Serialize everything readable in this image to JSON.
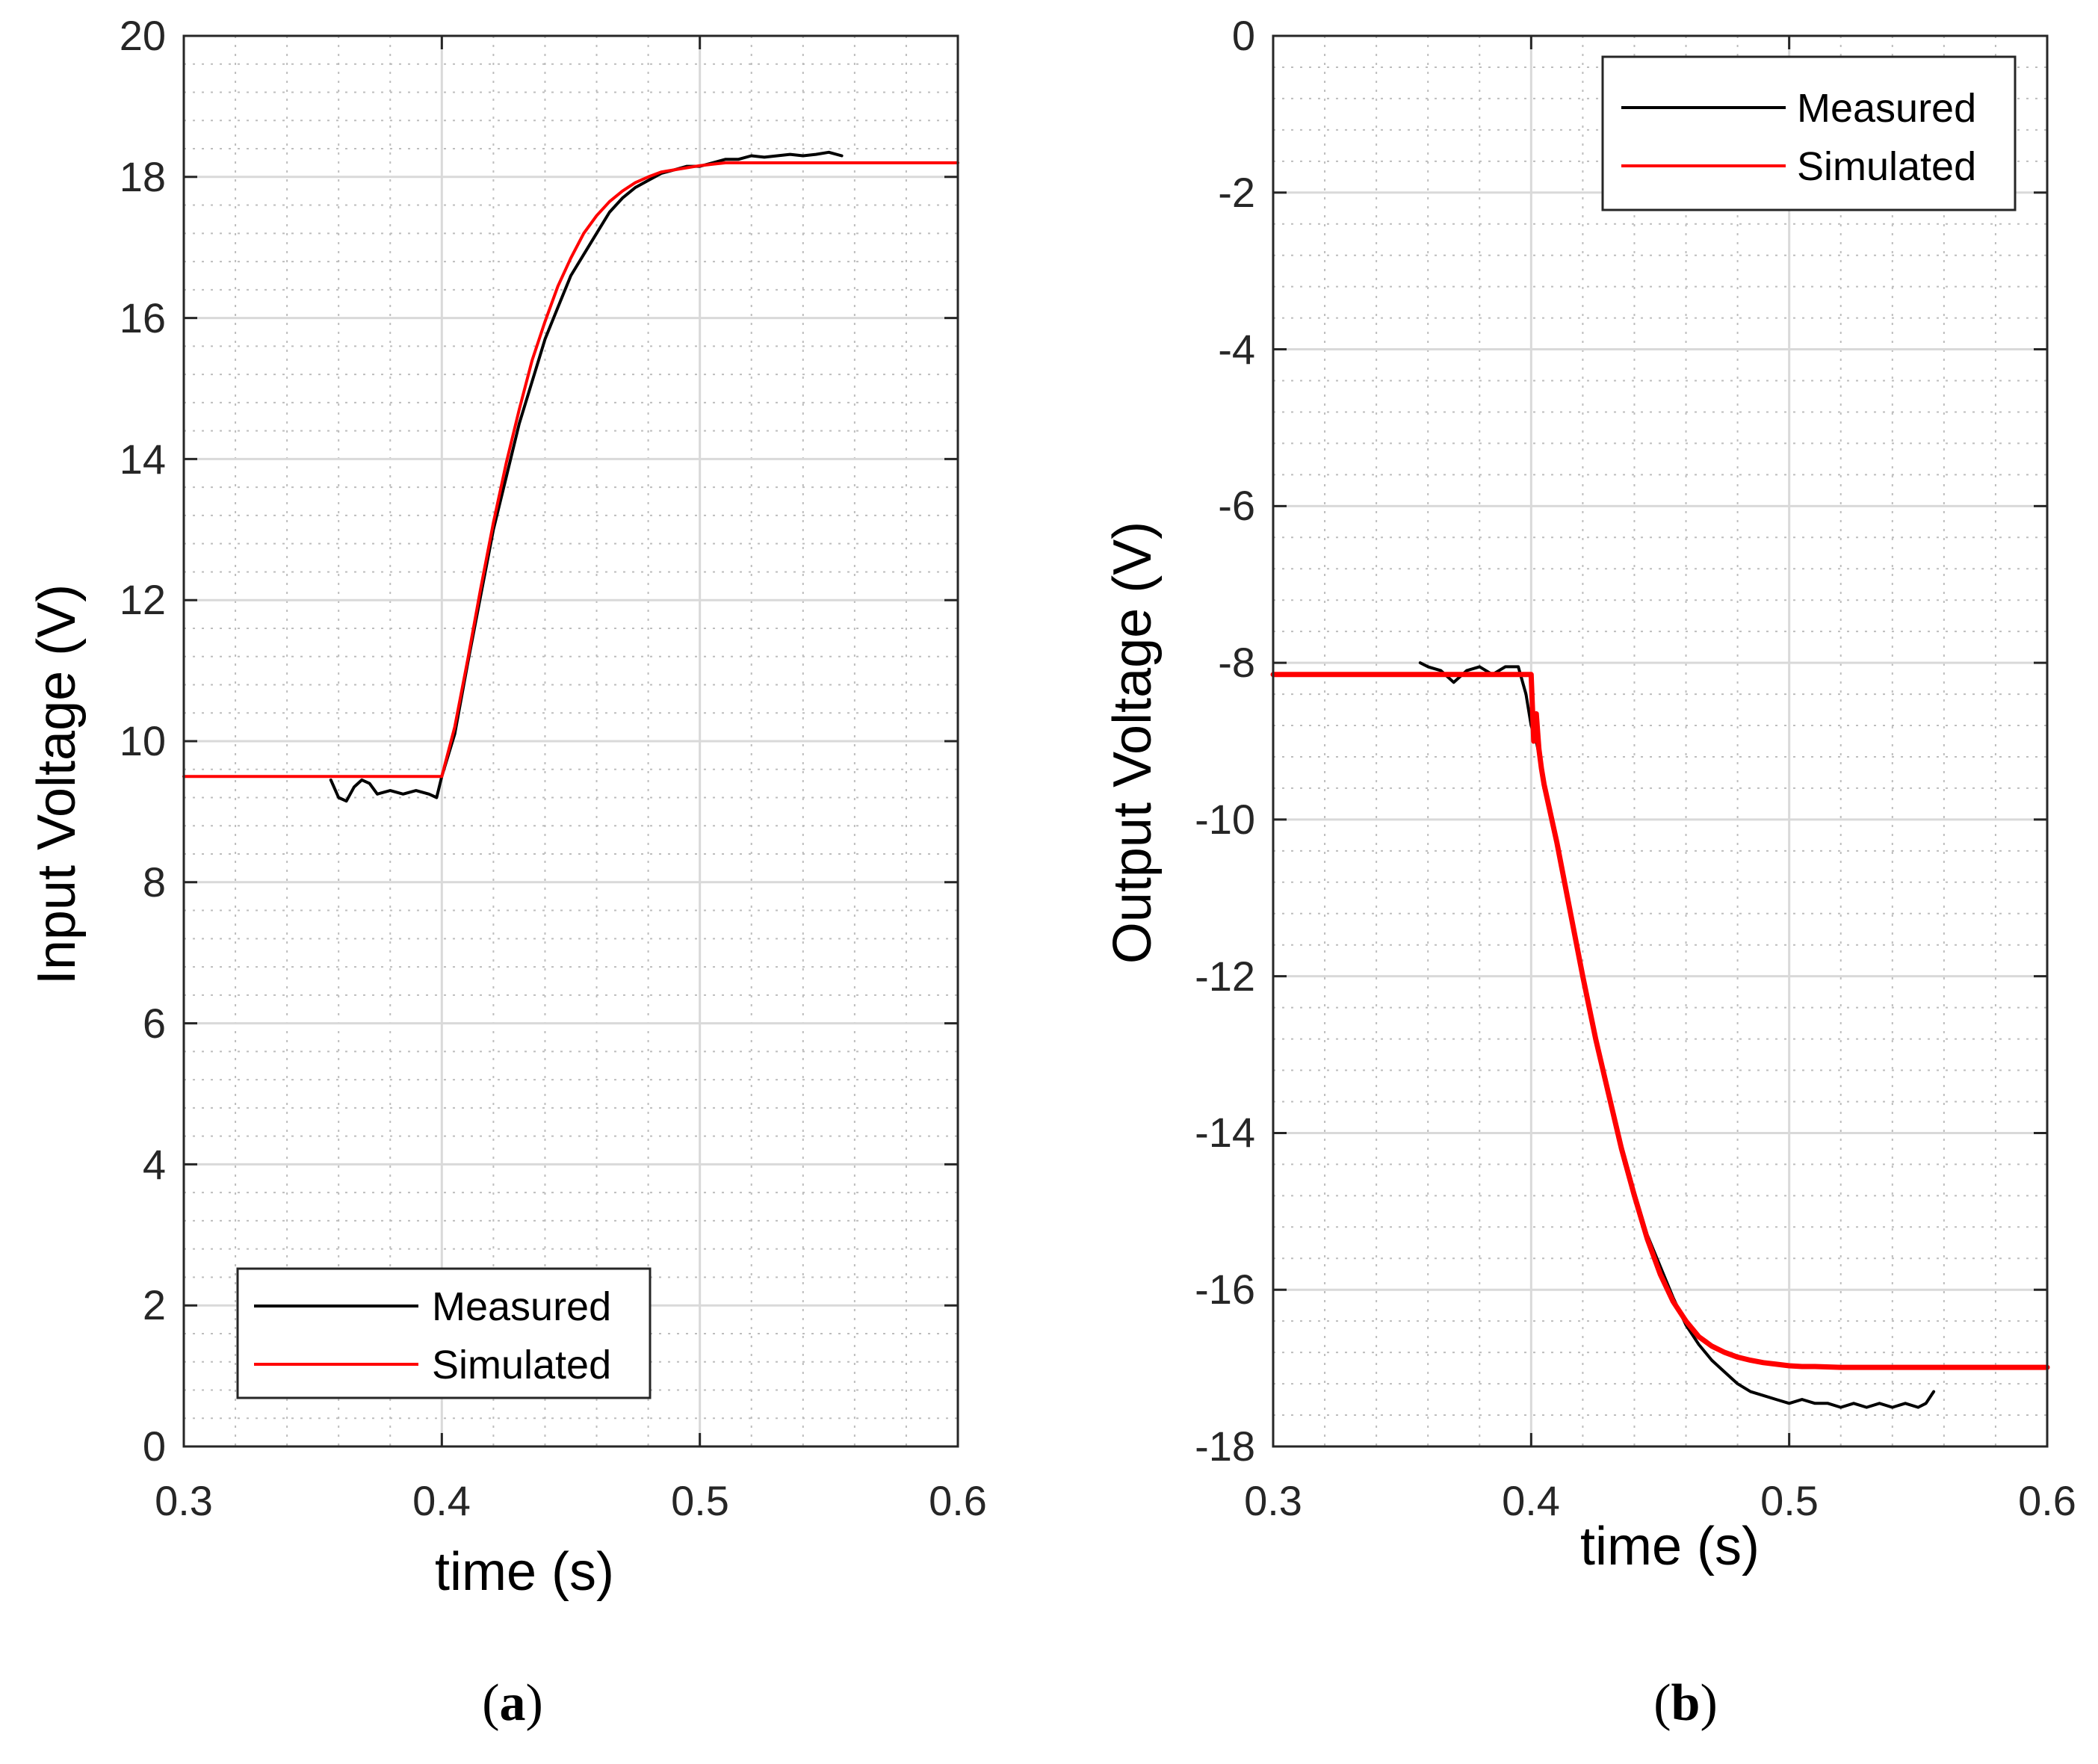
{
  "chart_data": [
    {
      "type": "line",
      "panel_label": "a",
      "xlabel": "time (s)",
      "ylabel": "Input Voltage (V)",
      "xlim": [
        0.3,
        0.6
      ],
      "ylim": [
        0,
        20
      ],
      "xticks": [
        0.3,
        0.4,
        0.5,
        0.6
      ],
      "xtick_labels": [
        "0.3",
        "0.4",
        "0.5",
        "0.6"
      ],
      "yticks": [
        0,
        2,
        4,
        6,
        8,
        10,
        12,
        14,
        16,
        18,
        20
      ],
      "ytick_labels": [
        "0",
        "2",
        "4",
        "6",
        "8",
        "10",
        "12",
        "14",
        "16",
        "18",
        "20"
      ],
      "grid": "major solid, minor dotted",
      "legend_position": "bottom-left",
      "series": [
        {
          "name": "Measured",
          "color": "#000000",
          "x": [
            0.357,
            0.36,
            0.363,
            0.366,
            0.369,
            0.372,
            0.375,
            0.38,
            0.385,
            0.39,
            0.395,
            0.398,
            0.4,
            0.405,
            0.41,
            0.415,
            0.42,
            0.425,
            0.43,
            0.435,
            0.44,
            0.445,
            0.45,
            0.455,
            0.46,
            0.465,
            0.47,
            0.475,
            0.48,
            0.485,
            0.49,
            0.495,
            0.5,
            0.505,
            0.51,
            0.515,
            0.52,
            0.525,
            0.53,
            0.535,
            0.54,
            0.545,
            0.55,
            0.555
          ],
          "y": [
            9.45,
            9.2,
            9.15,
            9.35,
            9.45,
            9.4,
            9.25,
            9.3,
            9.25,
            9.3,
            9.25,
            9.2,
            9.5,
            10.1,
            11.1,
            12.05,
            13.0,
            13.75,
            14.5,
            15.1,
            15.7,
            16.15,
            16.6,
            16.9,
            17.2,
            17.5,
            17.7,
            17.85,
            17.95,
            18.05,
            18.1,
            18.15,
            18.15,
            18.2,
            18.25,
            18.25,
            18.3,
            18.28,
            18.3,
            18.32,
            18.3,
            18.32,
            18.35,
            18.3
          ]
        },
        {
          "name": "Simulated",
          "color": "#ff0000",
          "x": [
            0.3,
            0.35,
            0.4,
            0.405,
            0.41,
            0.415,
            0.42,
            0.425,
            0.43,
            0.435,
            0.44,
            0.445,
            0.45,
            0.455,
            0.46,
            0.465,
            0.47,
            0.475,
            0.48,
            0.485,
            0.49,
            0.495,
            0.5,
            0.505,
            0.51,
            0.55,
            0.6
          ],
          "y": [
            9.5,
            9.5,
            9.5,
            10.2,
            11.15,
            12.15,
            13.1,
            13.95,
            14.7,
            15.4,
            15.95,
            16.45,
            16.85,
            17.2,
            17.45,
            17.65,
            17.8,
            17.92,
            18.0,
            18.07,
            18.1,
            18.13,
            18.16,
            18.18,
            18.2,
            18.2,
            18.2
          ]
        }
      ]
    },
    {
      "type": "line",
      "panel_label": "b",
      "xlabel": "time (s)",
      "ylabel": "Output Voltage (V)",
      "xlim": [
        0.3,
        0.6
      ],
      "ylim": [
        -18,
        0
      ],
      "xticks": [
        0.3,
        0.4,
        0.5,
        0.6
      ],
      "xtick_labels": [
        "0.3",
        "0.4",
        "0.5",
        "0.6"
      ],
      "yticks": [
        0,
        -2,
        -4,
        -6,
        -8,
        -10,
        -12,
        -14,
        -16,
        -18
      ],
      "ytick_labels": [
        "0",
        "-2",
        "-4",
        "-6",
        "-8",
        "-10",
        "-12",
        "-14",
        "-16",
        "-18"
      ],
      "grid": "major solid, minor dotted",
      "legend_position": "top-right",
      "series": [
        {
          "name": "Measured",
          "color": "#000000",
          "x": [
            0.357,
            0.36,
            0.365,
            0.37,
            0.375,
            0.38,
            0.385,
            0.39,
            0.395,
            0.398,
            0.4,
            0.402,
            0.405,
            0.41,
            0.415,
            0.42,
            0.425,
            0.43,
            0.435,
            0.44,
            0.445,
            0.45,
            0.455,
            0.46,
            0.465,
            0.47,
            0.475,
            0.48,
            0.485,
            0.49,
            0.495,
            0.5,
            0.505,
            0.51,
            0.515,
            0.52,
            0.525,
            0.53,
            0.535,
            0.54,
            0.545,
            0.55,
            0.553,
            0.556
          ],
          "y": [
            -8.0,
            -8.05,
            -8.1,
            -8.25,
            -8.1,
            -8.05,
            -8.15,
            -8.05,
            -8.05,
            -8.4,
            -8.8,
            -9.0,
            -9.5,
            -10.3,
            -11.2,
            -12.0,
            -12.8,
            -13.5,
            -14.15,
            -14.75,
            -15.3,
            -15.7,
            -16.1,
            -16.45,
            -16.7,
            -16.9,
            -17.05,
            -17.2,
            -17.3,
            -17.35,
            -17.4,
            -17.45,
            -17.4,
            -17.45,
            -17.45,
            -17.5,
            -17.45,
            -17.5,
            -17.45,
            -17.5,
            -17.45,
            -17.5,
            -17.45,
            -17.3
          ]
        },
        {
          "name": "Simulated",
          "color": "#ff0000",
          "x": [
            0.3,
            0.35,
            0.4,
            0.401,
            0.402,
            0.403,
            0.404,
            0.405,
            0.41,
            0.415,
            0.42,
            0.425,
            0.43,
            0.435,
            0.44,
            0.445,
            0.45,
            0.455,
            0.46,
            0.465,
            0.47,
            0.475,
            0.48,
            0.485,
            0.49,
            0.495,
            0.5,
            0.505,
            0.51,
            0.52,
            0.55,
            0.6
          ],
          "y": [
            -8.15,
            -8.15,
            -8.15,
            -9.0,
            -8.65,
            -9.1,
            -9.35,
            -9.55,
            -10.3,
            -11.15,
            -12.0,
            -12.8,
            -13.5,
            -14.2,
            -14.8,
            -15.35,
            -15.8,
            -16.15,
            -16.4,
            -16.6,
            -16.72,
            -16.8,
            -16.86,
            -16.9,
            -16.93,
            -16.95,
            -16.97,
            -16.98,
            -16.98,
            -16.99,
            -16.99,
            -16.99
          ]
        }
      ]
    }
  ]
}
